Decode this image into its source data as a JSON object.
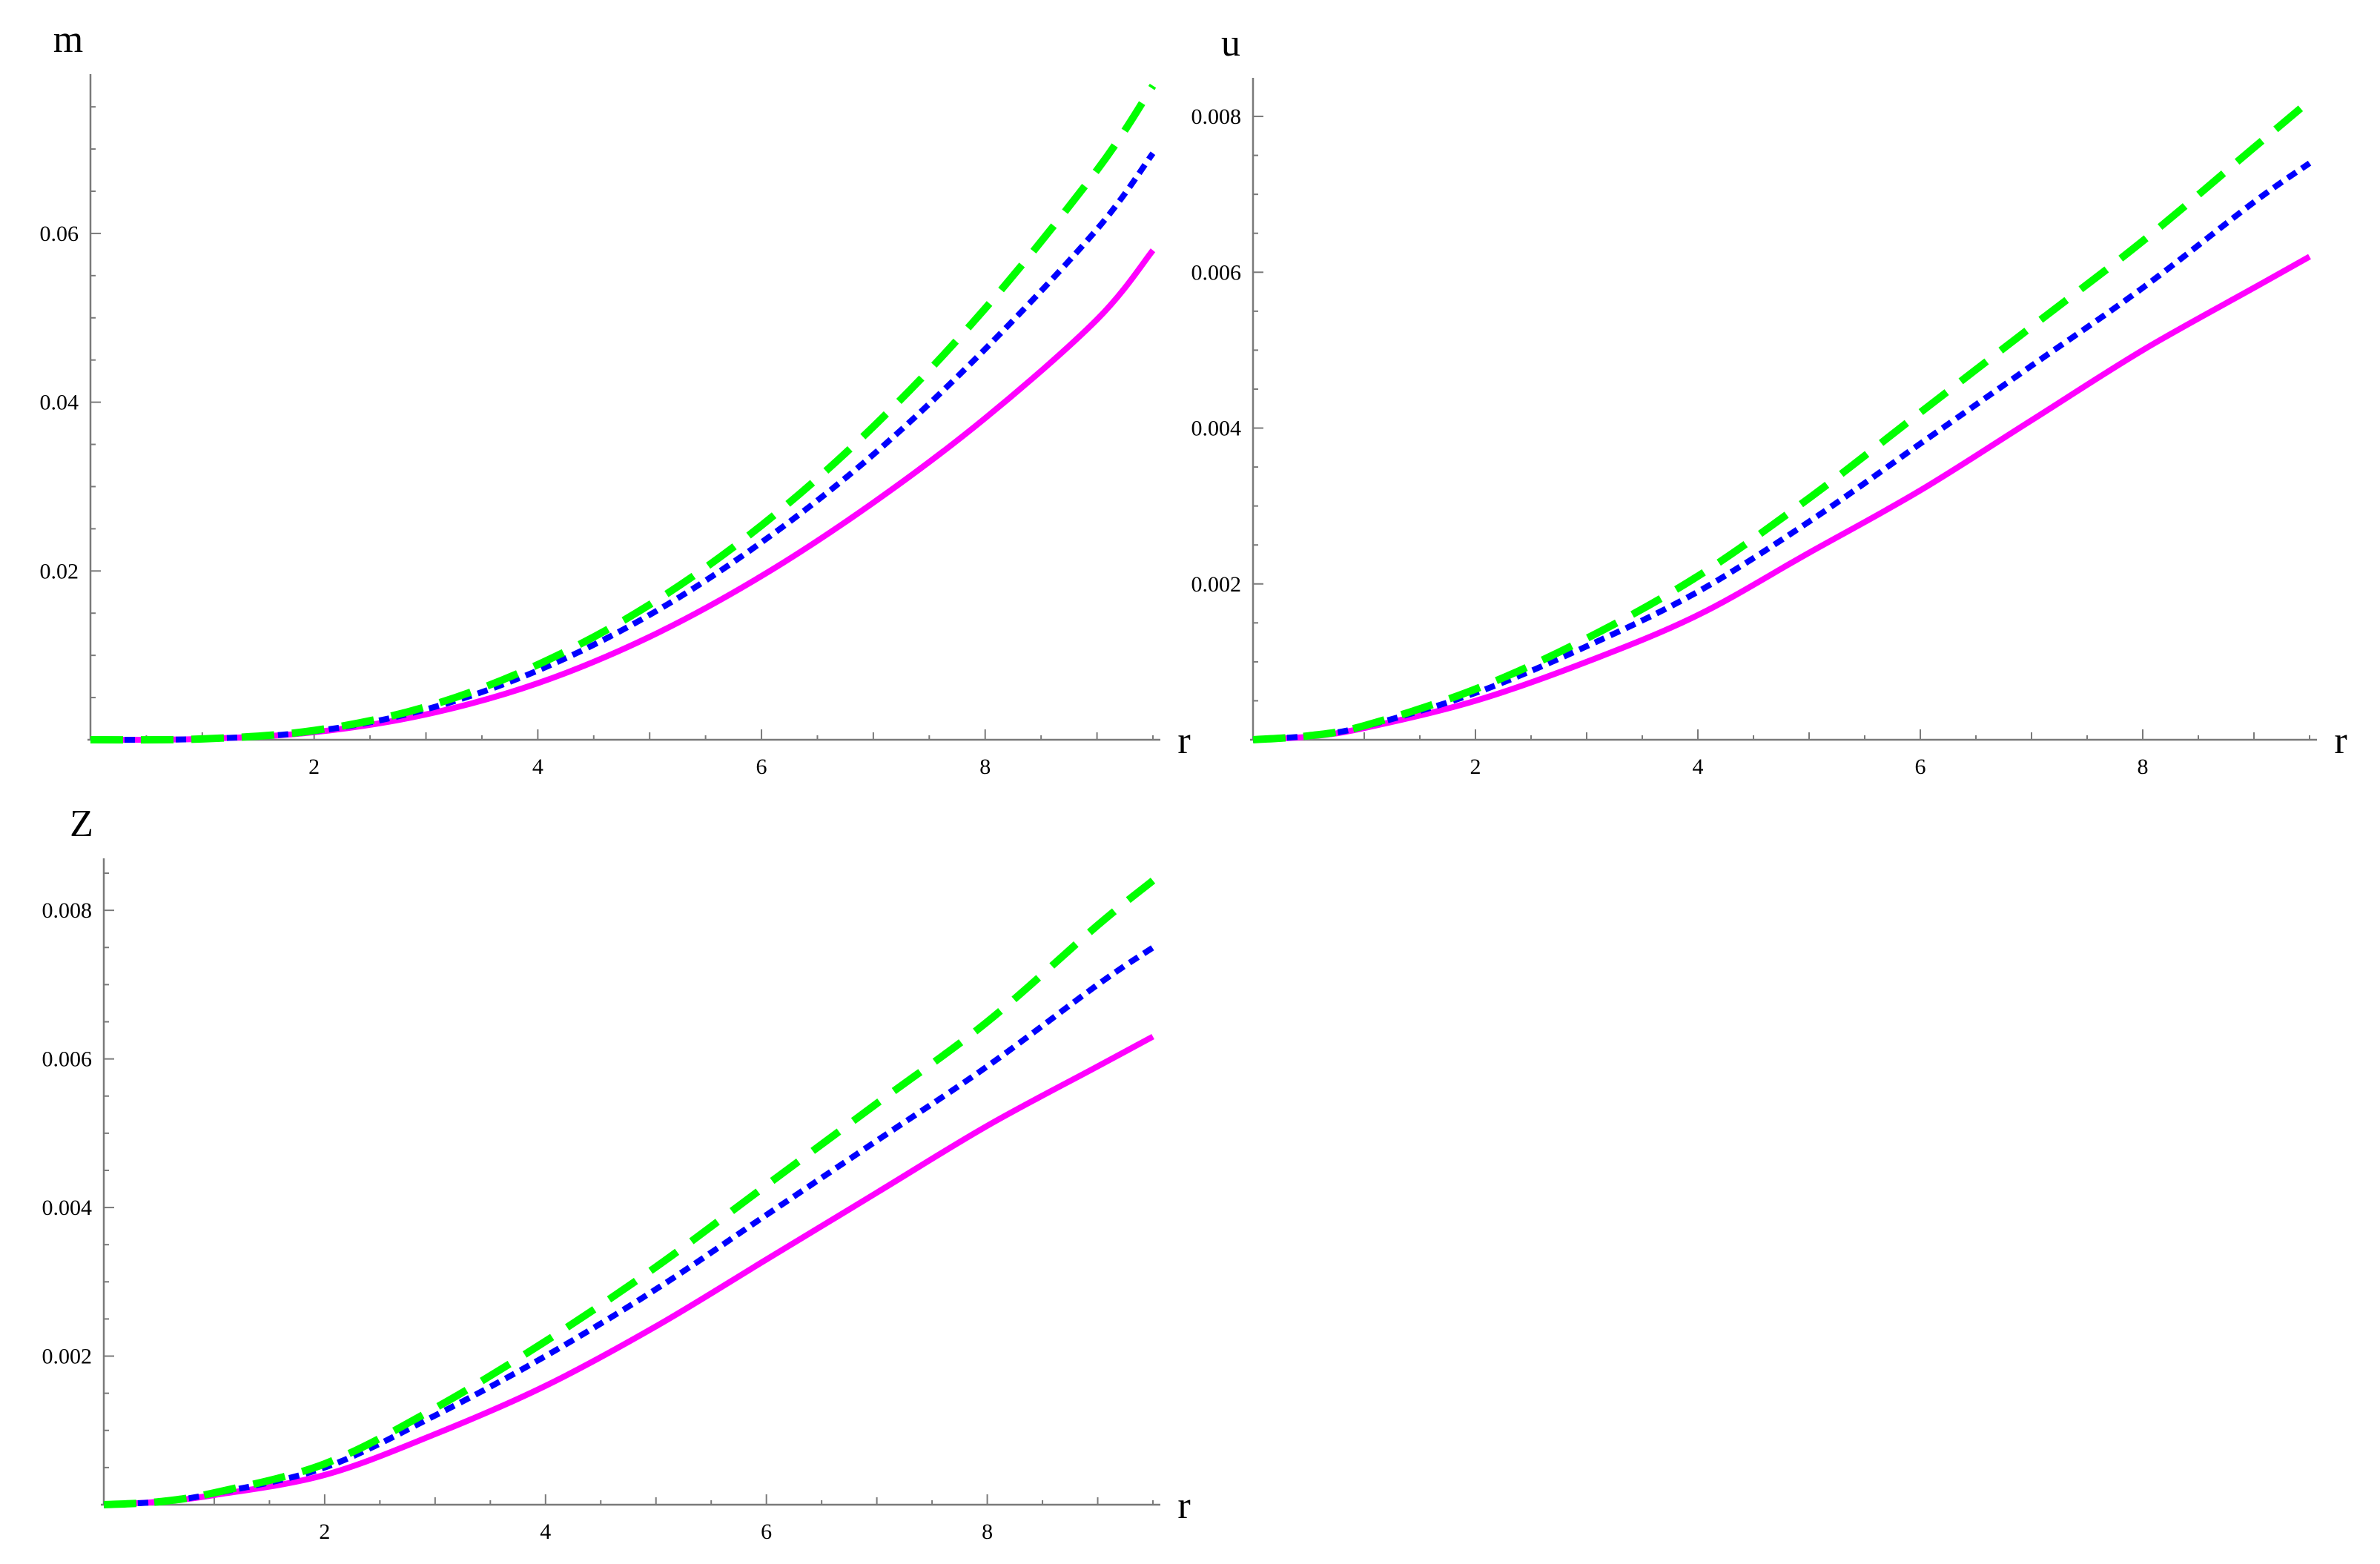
{
  "chart_data": [
    {
      "type": "line",
      "ylabel": "m",
      "xlabel": "r",
      "xlim": [
        0,
        9.5
      ],
      "ylim": [
        0,
        0.078
      ],
      "xticks": [
        2,
        4,
        6,
        8
      ],
      "xtick_labels": [
        "2",
        "4",
        "6",
        "8"
      ],
      "yticks": [
        0.02,
        0.04,
        0.06
      ],
      "ytick_labels": [
        "0.02",
        "0.04",
        "0.06"
      ],
      "grid": false,
      "series": [
        {
          "color": "#ff00ff",
          "style": "solid",
          "x": [
            0,
            1,
            2,
            3,
            4,
            5,
            6,
            7,
            8,
            9,
            9.5
          ],
          "values": [
            0,
            0.0001,
            0.0009,
            0.003,
            0.0067,
            0.0122,
            0.0194,
            0.0281,
            0.0381,
            0.0498,
            0.058
          ]
        },
        {
          "color": "#0000ff",
          "style": "dotted",
          "x": [
            0,
            1,
            2,
            3,
            4,
            5,
            6,
            7,
            8,
            9,
            9.5
          ],
          "values": [
            0,
            0.0001,
            0.001,
            0.0036,
            0.0082,
            0.0148,
            0.0234,
            0.0338,
            0.0463,
            0.0605,
            0.0695
          ]
        },
        {
          "color": "#00ff00",
          "style": "dashed",
          "x": [
            0,
            1,
            2,
            3,
            4,
            5,
            6,
            7,
            8,
            9,
            9.5
          ],
          "values": [
            0,
            0.0001,
            0.0011,
            0.0039,
            0.0089,
            0.016,
            0.0254,
            0.0371,
            0.0511,
            0.0675,
            0.0775
          ]
        }
      ]
    },
    {
      "type": "line",
      "ylabel": "u",
      "xlabel": "r",
      "xlim": [
        0,
        9.5
      ],
      "ylim": [
        0,
        0.0084
      ],
      "xticks": [
        2,
        4,
        6,
        8
      ],
      "xtick_labels": [
        "2",
        "4",
        "6",
        "8"
      ],
      "yticks": [
        0.002,
        0.004,
        0.006,
        0.008
      ],
      "ytick_labels": [
        "0.002",
        "0.004",
        "0.006",
        "0.008"
      ],
      "grid": false,
      "series": [
        {
          "color": "#ff00ff",
          "style": "solid",
          "x": [
            0,
            0.5,
            1,
            2,
            3,
            4,
            5,
            6,
            7,
            8,
            9,
            9.5
          ],
          "values": [
            0,
            4e-05,
            0.00015,
            0.0005,
            0.001,
            0.0016,
            0.0024,
            0.0032,
            0.0041,
            0.005,
            0.0058,
            0.0062
          ]
        },
        {
          "color": "#0000ff",
          "style": "dotted",
          "x": [
            0,
            0.5,
            1,
            2,
            3,
            4,
            5,
            6,
            7,
            8,
            9,
            9.5
          ],
          "values": [
            0,
            5e-05,
            0.00017,
            0.0006,
            0.0012,
            0.0019,
            0.0028,
            0.0038,
            0.0048,
            0.0058,
            0.0069,
            0.0074
          ]
        },
        {
          "color": "#00ff00",
          "style": "dashed",
          "x": [
            0,
            0.5,
            1,
            2,
            3,
            4,
            5,
            6,
            7,
            8,
            9,
            9.5
          ],
          "values": [
            0,
            5e-05,
            0.00018,
            0.00065,
            0.0013,
            0.0021,
            0.0031,
            0.0042,
            0.0053,
            0.0064,
            0.0076,
            0.0082
          ]
        }
      ]
    },
    {
      "type": "line",
      "ylabel": "Z",
      "xlabel": "r",
      "xlim": [
        0,
        9.5
      ],
      "ylim": [
        0,
        0.0086
      ],
      "xticks": [
        2,
        4,
        6,
        8
      ],
      "xtick_labels": [
        "2",
        "4",
        "6",
        "8"
      ],
      "yticks": [
        0.002,
        0.004,
        0.006,
        0.008
      ],
      "ytick_labels": [
        "0.002",
        "0.004",
        "0.006",
        "0.008"
      ],
      "grid": false,
      "series": [
        {
          "color": "#ff00ff",
          "style": "solid",
          "x": [
            0,
            0.5,
            1,
            2,
            3,
            4,
            5,
            6,
            7,
            8,
            9,
            9.5
          ],
          "values": [
            0,
            4e-05,
            0.00013,
            0.0004,
            0.00095,
            0.0016,
            0.0024,
            0.0033,
            0.0042,
            0.0051,
            0.0059,
            0.0063
          ]
        },
        {
          "color": "#0000ff",
          "style": "dotted",
          "x": [
            0,
            0.5,
            1,
            2,
            3,
            4,
            5,
            6,
            7,
            8,
            9,
            9.5
          ],
          "values": [
            0,
            4e-05,
            0.00015,
            0.0005,
            0.0012,
            0.002,
            0.0029,
            0.0039,
            0.0049,
            0.0059,
            0.007,
            0.0075
          ]
        },
        {
          "color": "#00ff00",
          "style": "dashed",
          "x": [
            0,
            0.5,
            1,
            2,
            3,
            4,
            5,
            6,
            7,
            8,
            9,
            9.5
          ],
          "values": [
            0,
            4e-05,
            0.00016,
            0.00055,
            0.0013,
            0.0022,
            0.0032,
            0.0043,
            0.0054,
            0.0065,
            0.0078,
            0.0084
          ]
        }
      ]
    }
  ]
}
